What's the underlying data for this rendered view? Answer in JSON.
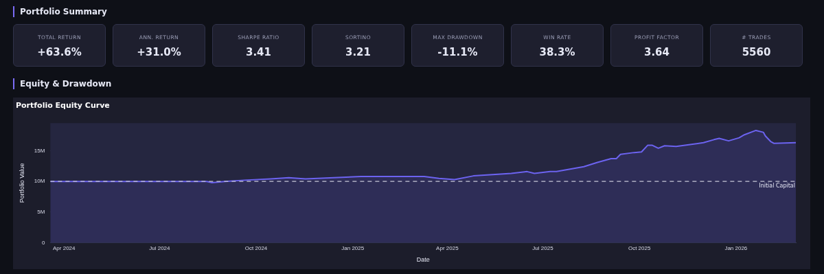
{
  "chart_data": [
    {
      "type": "other",
      "title": "Portfolio Summary",
      "categories": [
        "TOTAL RETURN",
        "ANN. RETURN",
        "SHARPE RATIO",
        "SORTINO",
        "MAX DRAWDOWN",
        "WIN RATE",
        "PROFIT FACTOR",
        "# TRADES"
      ],
      "value_labels": [
        "+63.6%",
        "+31.0%",
        "3.41",
        "3.21",
        "-11.1%",
        "38.3%",
        "3.64",
        "5560"
      ]
    },
    {
      "type": "area",
      "title": "Equity & Drawdown",
      "subtitle": "Portfolio Equity Curve",
      "xlabel": "Date",
      "ylabel": "Portfolio Value",
      "x": [
        "2024-03-19",
        "2024-05-01",
        "2024-07-01",
        "2024-08-15",
        "2024-08-20",
        "2024-09-01",
        "2024-09-20",
        "2024-10-15",
        "2024-11-01",
        "2024-11-17",
        "2025-01-09",
        "2025-02-23",
        "2025-03-10",
        "2025-03-24",
        "2025-04-08",
        "2025-04-26",
        "2025-06-01",
        "2025-06-16",
        "2025-06-23",
        "2025-07-08",
        "2025-07-14",
        "2025-08-09",
        "2025-08-22",
        "2025-09-04",
        "2025-09-09",
        "2025-09-13",
        "2025-09-26",
        "2025-10-03",
        "2025-10-09",
        "2025-10-13",
        "2025-10-19",
        "2025-10-25",
        "2025-11-05",
        "2025-12-01",
        "2025-12-11",
        "2025-12-16",
        "2025-12-25",
        "2026-01-04",
        "2026-01-09",
        "2026-01-20",
        "2026-01-27",
        "2026-01-29",
        "2026-02-03",
        "2026-02-06",
        "2026-02-27"
      ],
      "series": [
        {
          "color": "#6c63f0",
          "values": [
            10.0,
            10.0,
            10.0,
            10.0,
            9.8,
            10.0,
            10.2,
            10.4,
            10.6,
            10.4,
            10.8,
            10.8,
            10.8,
            10.5,
            10.3,
            10.9,
            11.3,
            11.6,
            11.3,
            11.6,
            11.6,
            12.4,
            13.1,
            13.7,
            13.7,
            14.4,
            14.7,
            14.8,
            15.9,
            15.9,
            15.4,
            15.8,
            15.7,
            16.3,
            16.8,
            17.0,
            16.6,
            17.1,
            17.6,
            18.3,
            18.0,
            17.4,
            16.5,
            16.2,
            16.3
          ]
        }
      ],
      "xlim": [
        "2024-03-19",
        "2026-02-27"
      ],
      "xticks": [
        {
          "value": "2024-04",
          "label": "Apr 2024"
        },
        {
          "value": "2024-07",
          "label": "Jul 2024"
        },
        {
          "value": "2024-10",
          "label": "Oct 2024"
        },
        {
          "value": "2025-01",
          "label": "Jan 2025"
        },
        {
          "value": "2025-04",
          "label": "Apr 2025"
        },
        {
          "value": "2025-07",
          "label": "Jul 2025"
        },
        {
          "value": "2025-10",
          "label": "Oct 2025"
        },
        {
          "value": "2026-01",
          "label": "Jan 2026"
        }
      ],
      "ylim": [
        0,
        19.5
      ],
      "yticks": [
        0,
        {
          "value": 5,
          "label": "5M"
        },
        {
          "value": 10,
          "label": "10M"
        },
        {
          "value": 15,
          "label": "15M"
        }
      ],
      "ref_lines": [
        {
          "axis": "y",
          "value": 10,
          "label": "Initial Capital",
          "color": "#c8c8d8",
          "line_style": "dashed"
        }
      ],
      "grid": "y",
      "legend": false,
      "marker": "none",
      "line_style": "solid"
    }
  ]
}
